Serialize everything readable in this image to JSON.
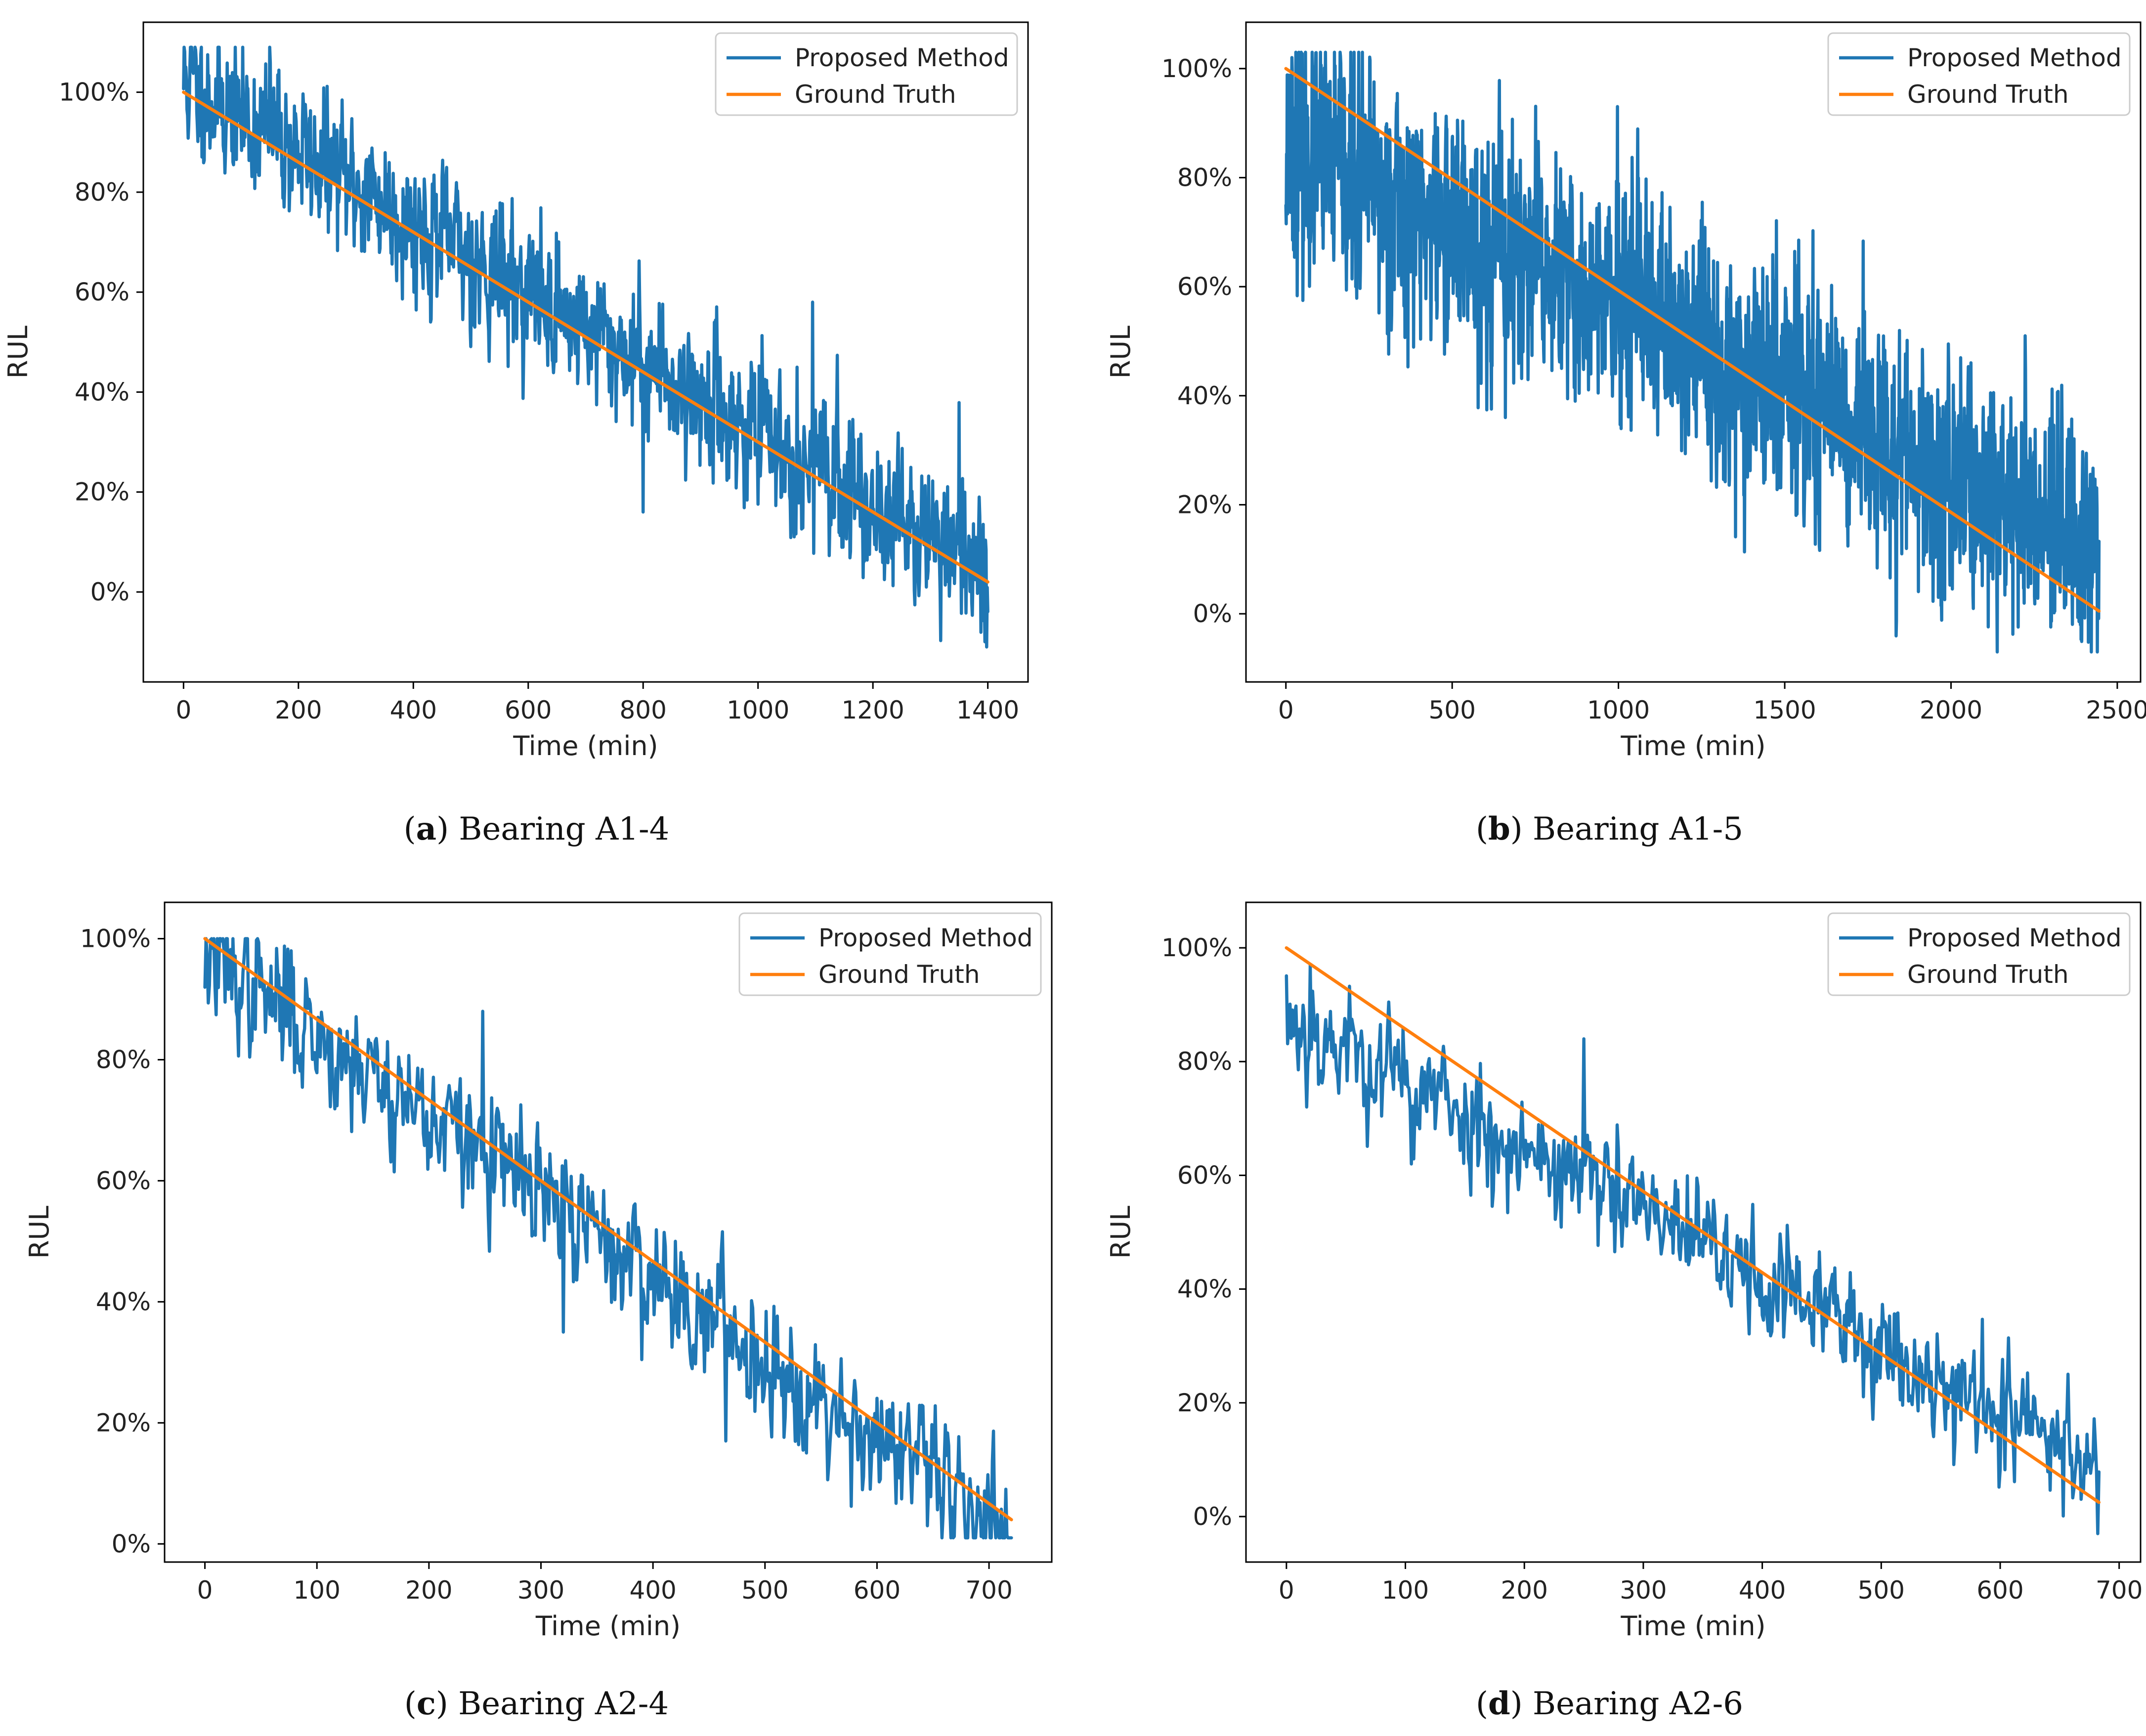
{
  "colors": {
    "predicted": "#1f77b4",
    "truth": "#ff7f0e",
    "axis": "#000000",
    "legend_border": "#cccccc"
  },
  "chart_data": [
    {
      "type": "line",
      "panel_letter": "a",
      "caption": "Bearing A1-4",
      "xlabel": "Time (min)",
      "ylabel": "RUL",
      "xlim": [
        -70,
        1470
      ],
      "ylim": [
        -18,
        114
      ],
      "xticks": [
        0,
        200,
        400,
        600,
        800,
        1000,
        1200,
        1400
      ],
      "xtick_labels": [
        "0",
        "200",
        "400",
        "600",
        "800",
        "1000",
        "1200",
        "1400"
      ],
      "yticks": [
        0,
        20,
        40,
        60,
        80,
        100
      ],
      "ytick_labels": [
        "0%",
        "20%",
        "40%",
        "60%",
        "80%",
        "100%"
      ],
      "legend_position": "upper right",
      "grid": false,
      "series": [
        {
          "name": "Proposed Method",
          "kind": "noisy_prediction",
          "x_end": 1400,
          "start": 100,
          "end": 1,
          "noise": 6.5,
          "bias": 2.5,
          "min": -11,
          "max": 109,
          "seed": 11,
          "spikes": [
            [
              150,
              109
            ],
            [
              1095,
              58
            ],
            [
              800,
              16
            ],
            [
              1398,
              -11
            ],
            [
              1385,
              19
            ]
          ]
        },
        {
          "name": "Ground Truth",
          "x": [
            0,
            1400
          ],
          "y": [
            100,
            2
          ]
        }
      ]
    },
    {
      "type": "line",
      "panel_letter": "b",
      "caption": "Bearing A1-5",
      "xlabel": "Time (min)",
      "ylabel": "RUL",
      "xlim": [
        -120,
        2570
      ],
      "ylim": [
        -12.5,
        108.5
      ],
      "xticks": [
        0,
        500,
        1000,
        1500,
        2000,
        2500
      ],
      "xtick_labels": [
        "0",
        "500",
        "1000",
        "1500",
        "2000",
        "2500"
      ],
      "yticks": [
        0,
        20,
        40,
        60,
        80,
        100
      ],
      "ytick_labels": [
        "0%",
        "20%",
        "40%",
        "60%",
        "80%",
        "100%"
      ],
      "legend_position": "upper right",
      "grid": false,
      "series": [
        {
          "name": "Proposed Method",
          "kind": "noisy_prediction",
          "x_end": 2445,
          "start": 86,
          "end": 12,
          "noise": 10,
          "bias": 0,
          "min": -7,
          "max": 103,
          "seed": 23,
          "spikes": [
            [
              30,
              103
            ],
            [
              210,
              60
            ],
            [
              660,
              36
            ],
            [
              2440,
              -7
            ],
            [
              1790,
              19
            ]
          ]
        },
        {
          "name": "Ground Truth",
          "x": [
            0,
            2445
          ],
          "y": [
            100,
            0.5
          ]
        }
      ]
    },
    {
      "type": "line",
      "panel_letter": "c",
      "caption": "Bearing A2-4",
      "xlabel": "Time (min)",
      "ylabel": "RUL",
      "xlim": [
        -36,
        756
      ],
      "ylim": [
        -3,
        106
      ],
      "xticks": [
        0,
        100,
        200,
        300,
        400,
        500,
        600,
        700
      ],
      "xtick_labels": [
        "0",
        "100",
        "200",
        "300",
        "400",
        "500",
        "600",
        "700"
      ],
      "yticks": [
        0,
        20,
        40,
        60,
        80,
        100
      ],
      "ytick_labels": [
        "0%",
        "20%",
        "40%",
        "60%",
        "80%",
        "100%"
      ],
      "legend_position": "upper right",
      "grid": false,
      "series": [
        {
          "name": "Proposed Method",
          "kind": "noisy_prediction",
          "x_end": 720,
          "start": 100,
          "end": 4,
          "noise": 5,
          "bias": -2.5,
          "min": 1,
          "max": 100,
          "seed": 37,
          "spikes": [
            [
              248,
              88
            ],
            [
              320,
              35
            ],
            [
              465,
              17
            ],
            [
              77,
              98
            ],
            [
              420,
              50
            ]
          ]
        },
        {
          "name": "Ground Truth",
          "x": [
            0,
            720
          ],
          "y": [
            100,
            4
          ]
        }
      ]
    },
    {
      "type": "line",
      "panel_letter": "d",
      "caption": "Bearing A2-6",
      "xlabel": "Time (min)",
      "ylabel": "RUL",
      "xlim": [
        -34,
        718
      ],
      "ylim": [
        -8,
        108
      ],
      "xticks": [
        0,
        100,
        200,
        300,
        400,
        500,
        600,
        700
      ],
      "xtick_labels": [
        "0",
        "100",
        "200",
        "300",
        "400",
        "500",
        "600",
        "700"
      ],
      "yticks": [
        0,
        20,
        40,
        60,
        80,
        100
      ],
      "ytick_labels": [
        "0%",
        "20%",
        "40%",
        "60%",
        "80%",
        "100%"
      ],
      "legend_position": "upper right",
      "grid": false,
      "series": [
        {
          "name": "Proposed Method",
          "kind": "noisy_prediction",
          "x_end": 683,
          "start": 89,
          "end": 10,
          "noise": 5,
          "bias": -1,
          "min": -3,
          "max": 97,
          "seed": 53,
          "spikes": [
            [
              105,
              62
            ],
            [
              250,
              84
            ],
            [
              20,
              97
            ],
            [
              682,
              -3
            ],
            [
              680,
              13
            ]
          ]
        },
        {
          "name": "Ground Truth",
          "x": [
            0,
            683
          ],
          "y": [
            100,
            2.5
          ]
        }
      ]
    }
  ]
}
